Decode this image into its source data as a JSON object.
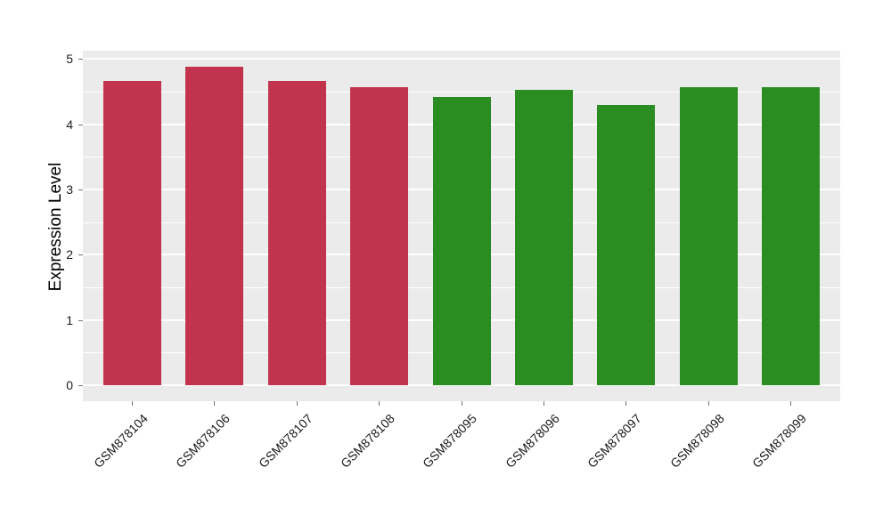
{
  "chart_data": {
    "type": "bar",
    "title": "",
    "xlabel": "",
    "ylabel": "Expression Level",
    "categories": [
      "GSM878104",
      "GSM878106",
      "GSM878107",
      "GSM878108",
      "GSM878095",
      "GSM878096",
      "GSM878097",
      "GSM878098",
      "GSM878099"
    ],
    "values": [
      4.66,
      4.88,
      4.66,
      4.57,
      4.42,
      4.53,
      4.29,
      4.56,
      4.57
    ],
    "bar_colors": [
      "#c2334d",
      "#c2334d",
      "#c2334d",
      "#c2334d",
      "#2b8c22",
      "#2b8c22",
      "#2b8c22",
      "#2b8c22",
      "#2b8c22"
    ],
    "groups": [
      {
        "name": "red-group",
        "color": "#c2334d",
        "samples": [
          "GSM878104",
          "GSM878106",
          "GSM878107",
          "GSM878108"
        ]
      },
      {
        "name": "green-group",
        "color": "#2b8c22",
        "samples": [
          "GSM878095",
          "GSM878096",
          "GSM878097",
          "GSM878098",
          "GSM878099"
        ]
      }
    ],
    "yticks": [
      0,
      1,
      2,
      3,
      4,
      5
    ],
    "ylim": [
      -0.245,
      5.125
    ],
    "bar_width_frac": 0.7,
    "grid": "major+minor",
    "legend_position": "none",
    "panel_bg": "#ebebeb",
    "grid_color": "#ffffff",
    "axis_text_color": "#1a1a1a",
    "tick_mark_color": "#777777"
  }
}
